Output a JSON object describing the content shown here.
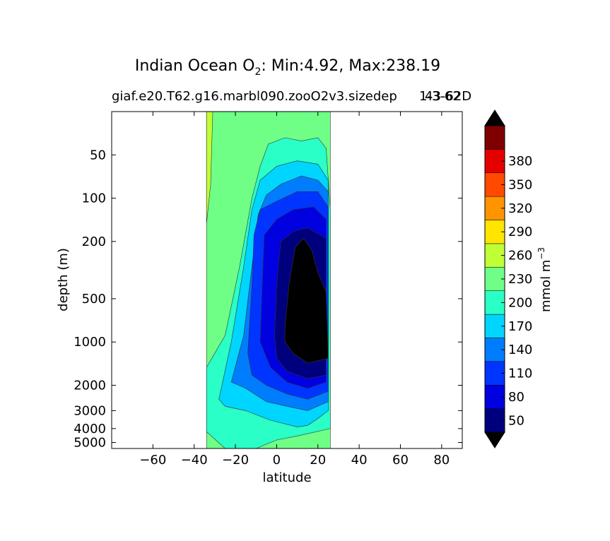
{
  "chart_data": {
    "type": "contourf",
    "title_prefix": "Indian Ocean O",
    "title_sub": "2",
    "title_suffix": ": Min:4.92, Max:238.19",
    "subtitle_left": "giaf.e20.T62.g16.marbl090.zooO2v3.sizedep",
    "subtitle_right": "1-3-62",
    "subtitle_overlap": "43-62D",
    "xlabel": "latitude",
    "ylabel": "depth (m)",
    "xlim": [
      -80,
      90
    ],
    "ylim_depth_m": [
      5500,
      25
    ],
    "y_scale": "log",
    "y_inverted": true,
    "xticks": [
      -60,
      -40,
      -20,
      0,
      20,
      40,
      60,
      80
    ],
    "yticks": [
      50,
      100,
      200,
      500,
      1000,
      2000,
      3000,
      4000,
      5000
    ],
    "data_extent_lat": [
      -34,
      26
    ],
    "colorbar": {
      "label": "mmol m",
      "label_sup": "−3",
      "extend": "both",
      "levels": [
        20,
        50,
        80,
        110,
        140,
        170,
        200,
        230,
        260,
        290,
        320,
        350,
        380,
        410
      ],
      "tick_labels": [
        50,
        80,
        110,
        140,
        170,
        200,
        230,
        260,
        290,
        320,
        350,
        380
      ],
      "colors": [
        "#00007f",
        "#0000e0",
        "#0035ff",
        "#007dff",
        "#00d5ff",
        "#29ffc6",
        "#70ff86",
        "#c0ff36",
        "#ffe500",
        "#ff9400",
        "#ff4a00",
        "#e50000",
        "#7f0000"
      ],
      "under_color": "#000000",
      "over_color": "#000000"
    },
    "contour_regions": [
      {
        "level_min": 200,
        "level_max": 230,
        "color": "#70ff86",
        "outline": [
          [
            -34,
            25
          ],
          [
            26,
            25
          ],
          [
            26,
            5500
          ],
          [
            -34,
            5500
          ]
        ]
      },
      {
        "level_min": 230,
        "level_max": 260,
        "color": "#c0ff36",
        "outline": [
          [
            -34,
            25
          ],
          [
            -31,
            25
          ],
          [
            -32,
            80
          ],
          [
            -34,
            150
          ]
        ]
      },
      {
        "level_min": 170,
        "level_max": 200,
        "color": "#29ffc6",
        "outline": [
          [
            -34,
            1500
          ],
          [
            -25,
            900
          ],
          [
            -18,
            300
          ],
          [
            -12,
            100
          ],
          [
            -8,
            60
          ],
          [
            -4,
            42
          ],
          [
            4,
            38
          ],
          [
            12,
            40
          ],
          [
            20,
            38
          ],
          [
            24,
            45
          ],
          [
            26,
            120
          ],
          [
            26,
            4000
          ],
          [
            10,
            4500
          ],
          [
            0,
            4800
          ],
          [
            -10,
            5500
          ],
          [
            -25,
            5500
          ],
          [
            -34,
            4200
          ]
        ]
      },
      {
        "level_min": 140,
        "level_max": 170,
        "color": "#00d5ff",
        "outline": [
          [
            -28,
            2500
          ],
          [
            -22,
            1000
          ],
          [
            -16,
            300
          ],
          [
            -12,
            120
          ],
          [
            -8,
            75
          ],
          [
            0,
            60
          ],
          [
            10,
            55
          ],
          [
            20,
            58
          ],
          [
            25,
            75
          ],
          [
            25,
            3000
          ],
          [
            20,
            3400
          ],
          [
            15,
            3800
          ],
          [
            10,
            3900
          ],
          [
            -3,
            3500
          ],
          [
            -15,
            3000
          ],
          [
            -25,
            2800
          ]
        ]
      },
      {
        "level_min": 110,
        "level_max": 140,
        "color": "#007dff",
        "outline": [
          [
            -22,
            1900
          ],
          [
            -16,
            900
          ],
          [
            -12,
            300
          ],
          [
            -9,
            130
          ],
          [
            -5,
            95
          ],
          [
            2,
            80
          ],
          [
            12,
            70
          ],
          [
            20,
            75
          ],
          [
            25,
            90
          ],
          [
            25,
            2600
          ],
          [
            15,
            3000
          ],
          [
            5,
            2800
          ],
          [
            -5,
            2600
          ],
          [
            -15,
            2100
          ]
        ]
      },
      {
        "level_min": 80,
        "level_max": 110,
        "color": "#0035ff",
        "outline": [
          [
            -14,
            1200
          ],
          [
            -12,
            400
          ],
          [
            -11,
            180
          ],
          [
            -8,
            120
          ],
          [
            0,
            105
          ],
          [
            10,
            90
          ],
          [
            20,
            90
          ],
          [
            25,
            115
          ],
          [
            25,
            2200
          ],
          [
            15,
            2500
          ],
          [
            5,
            2300
          ],
          [
            -5,
            2000
          ],
          [
            -12,
            1700
          ]
        ]
      },
      {
        "level_min": 50,
        "level_max": 80,
        "color": "#0000e0",
        "outline": [
          [
            -8,
            1000
          ],
          [
            -7,
            400
          ],
          [
            -6,
            180
          ],
          [
            0,
            140
          ],
          [
            8,
            120
          ],
          [
            18,
            115
          ],
          [
            24,
            140
          ],
          [
            24,
            1900
          ],
          [
            15,
            2100
          ],
          [
            5,
            1900
          ],
          [
            -3,
            1500
          ]
        ]
      },
      {
        "level_min": 20,
        "level_max": 50,
        "color": "#00007f",
        "outline": [
          [
            -1,
            900
          ],
          [
            0,
            400
          ],
          [
            2,
            200
          ],
          [
            8,
            170
          ],
          [
            15,
            160
          ],
          [
            24,
            190
          ],
          [
            24,
            1700
          ],
          [
            15,
            1800
          ],
          [
            5,
            1600
          ],
          [
            0,
            1300
          ]
        ]
      },
      {
        "level_min": 0,
        "level_max": 20,
        "color": "#000000",
        "outline": [
          [
            4,
            800
          ],
          [
            6,
            400
          ],
          [
            9,
            220
          ],
          [
            13,
            190
          ],
          [
            17,
            230
          ],
          [
            20,
            330
          ],
          [
            24,
            450
          ],
          [
            25,
            1300
          ],
          [
            15,
            1400
          ],
          [
            8,
            1200
          ],
          [
            4,
            1000
          ]
        ]
      }
    ]
  }
}
